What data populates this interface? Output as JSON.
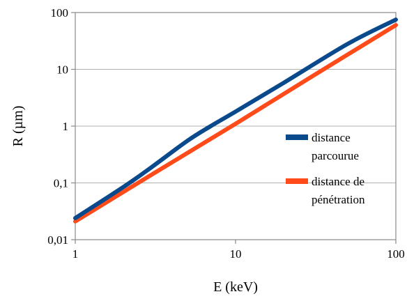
{
  "chart_data": {
    "type": "line",
    "title": "",
    "xlabel": "E (keV)",
    "ylabel": "R (µm)",
    "xscale": "log",
    "yscale": "log",
    "xlim": [
      1,
      100
    ],
    "ylim": [
      0.01,
      100
    ],
    "grid": "horizontal-major",
    "legend_position": "right",
    "x_ticks": [
      {
        "value": 1,
        "label": "1"
      },
      {
        "value": 10,
        "label": "10"
      },
      {
        "value": 100,
        "label": "100"
      }
    ],
    "y_ticks": [
      {
        "value": 0.01,
        "label": "0,01"
      },
      {
        "value": 0.1,
        "label": "0,1"
      },
      {
        "value": 1,
        "label": "1"
      },
      {
        "value": 10,
        "label": "10"
      },
      {
        "value": 100,
        "label": "100"
      }
    ],
    "series": [
      {
        "name": "distance parcourue",
        "legend_lines": [
          "distance",
          "parcourue"
        ],
        "color": "#0a4a8c",
        "x": [
          1,
          2,
          3,
          5,
          7,
          10,
          20,
          50,
          100
        ],
        "y": [
          0.024,
          0.085,
          0.19,
          0.55,
          1.0,
          1.8,
          5.8,
          28,
          75
        ]
      },
      {
        "name": "distance de pénétration",
        "legend_lines": [
          "distance de",
          "pénétration"
        ],
        "color": "#ff4a1a",
        "x": [
          1,
          3,
          10,
          30,
          100
        ],
        "y": [
          0.021,
          0.14,
          1.1,
          7.5,
          60
        ]
      }
    ]
  }
}
